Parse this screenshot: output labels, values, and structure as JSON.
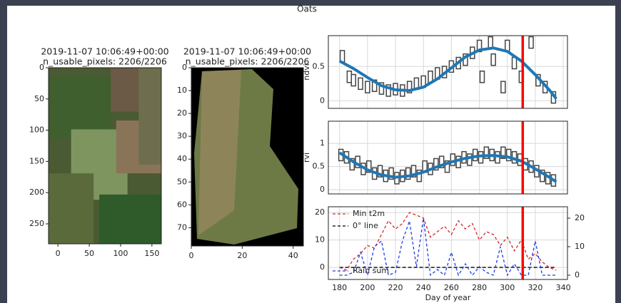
{
  "figure_title": "Oats",
  "chart_data": [
    {
      "type": "image",
      "title": "2019-11-07 10:06:49+00:00",
      "subtitle": "n_usable_pixels: 2206/2206",
      "xlim": [
        -15,
        165
      ],
      "ylim": [
        0,
        282
      ],
      "xticks": [
        0,
        50,
        100,
        150
      ],
      "yticks": [
        0,
        50,
        100,
        150,
        200,
        250
      ]
    },
    {
      "type": "image",
      "title": "2019-11-07 10:06:49+00:00",
      "subtitle": "n_usable_pixels: 2206/2206",
      "xlim": [
        0,
        44
      ],
      "ylim": [
        0,
        78
      ],
      "xticks": [
        0,
        20,
        40
      ],
      "yticks": [
        0,
        10,
        20,
        30,
        40,
        50,
        60,
        70
      ]
    },
    {
      "type": "line",
      "ylabel": "ndvi",
      "xlim": [
        172,
        343
      ],
      "ylim": [
        -0.11,
        0.95
      ],
      "xticks": [
        180,
        200,
        220,
        240,
        260,
        280,
        300,
        320,
        340
      ],
      "yticks": [
        0.0,
        0.5
      ],
      "grid": true,
      "vline": 311,
      "vline_color": "#ff0000",
      "series": [
        {
          "style": "box",
          "color": "#444444",
          "x": [
            182,
            187,
            190,
            195,
            200,
            205,
            210,
            215,
            220,
            225,
            230,
            235,
            240,
            245,
            250,
            255,
            260,
            265,
            270,
            275,
            280,
            282,
            288,
            290,
            297,
            300,
            305,
            310,
            317,
            322,
            327,
            333
          ],
          "values": [
            0.65,
            0.35,
            0.3,
            0.25,
            0.2,
            0.22,
            0.18,
            0.15,
            0.17,
            0.15,
            0.2,
            0.25,
            0.28,
            0.35,
            0.4,
            0.42,
            0.5,
            0.55,
            0.6,
            0.7,
            0.8,
            0.35,
            0.85,
            0.6,
            0.2,
            0.8,
            0.55,
            0.35,
            0.85,
            0.3,
            0.2,
            0.05
          ]
        },
        {
          "style": "line",
          "color": "#1f77b4",
          "x": [
            180,
            190,
            200,
            210,
            220,
            230,
            240,
            250,
            260,
            270,
            280,
            290,
            300,
            310,
            320,
            330,
            335
          ],
          "values": [
            0.58,
            0.47,
            0.34,
            0.22,
            0.16,
            0.15,
            0.2,
            0.32,
            0.48,
            0.64,
            0.74,
            0.77,
            0.72,
            0.58,
            0.38,
            0.16,
            0.03
          ]
        }
      ]
    },
    {
      "type": "line",
      "ylabel": "rvi",
      "xlim": [
        172,
        343
      ],
      "ylim": [
        -0.09,
        1.48
      ],
      "xticks": [
        180,
        200,
        220,
        240,
        260,
        280,
        300,
        320,
        340
      ],
      "yticks": [
        0.0,
        0.5,
        1.0
      ],
      "grid": true,
      "vline": 311,
      "vline_color": "#ff0000",
      "series": [
        {
          "style": "box",
          "color": "#444444",
          "x": [
            181,
            185,
            189,
            193,
            197,
            201,
            205,
            209,
            213,
            217,
            221,
            225,
            229,
            233,
            237,
            241,
            245,
            249,
            253,
            257,
            261,
            265,
            269,
            273,
            277,
            281,
            285,
            289,
            293,
            297,
            301,
            305,
            309,
            313,
            317,
            321,
            325,
            329,
            333
          ],
          "values": [
            0.75,
            0.7,
            0.55,
            0.6,
            0.45,
            0.5,
            0.35,
            0.4,
            0.3,
            0.35,
            0.25,
            0.3,
            0.35,
            0.4,
            0.3,
            0.5,
            0.45,
            0.55,
            0.6,
            0.5,
            0.65,
            0.6,
            0.7,
            0.65,
            0.75,
            0.7,
            0.8,
            0.75,
            0.7,
            0.8,
            0.75,
            0.7,
            0.65,
            0.55,
            0.5,
            0.4,
            0.3,
            0.25,
            0.2
          ]
        },
        {
          "style": "line",
          "color": "#1f77b4",
          "x": [
            180,
            190,
            200,
            210,
            220,
            230,
            240,
            250,
            260,
            270,
            280,
            290,
            300,
            310,
            320,
            330,
            335
          ],
          "values": [
            0.8,
            0.6,
            0.43,
            0.32,
            0.27,
            0.3,
            0.38,
            0.5,
            0.6,
            0.68,
            0.73,
            0.74,
            0.71,
            0.62,
            0.45,
            0.27,
            0.17
          ]
        }
      ]
    },
    {
      "type": "line",
      "xlabel": "Day of year",
      "xlim": [
        172,
        343
      ],
      "ylim": [
        -4.4,
        22.1
      ],
      "y2lim": [
        -1.5,
        24
      ],
      "xticks": [
        180,
        200,
        220,
        240,
        260,
        280,
        300,
        320,
        340
      ],
      "yticks": [
        0,
        10,
        20
      ],
      "y2ticks": [
        0,
        10,
        20
      ],
      "grid": true,
      "legend": "upper left",
      "vline": 311,
      "vline_color": "#ff0000",
      "hline": {
        "name": "0° line",
        "value": 0,
        "color": "#000000"
      },
      "series": [
        {
          "name": "Min t2m",
          "style": "dashed",
          "color": "#d62728",
          "x": [
            180,
            185,
            190,
            195,
            200,
            205,
            210,
            215,
            220,
            225,
            230,
            235,
            240,
            245,
            250,
            255,
            260,
            265,
            270,
            275,
            280,
            285,
            290,
            295,
            300,
            305,
            310,
            315,
            320,
            325,
            330,
            335
          ],
          "values": [
            0,
            -1,
            3,
            5,
            8,
            7,
            12,
            17,
            14,
            16,
            20,
            19,
            18,
            11,
            13,
            15,
            12,
            17,
            14,
            16,
            10,
            13,
            12,
            8,
            11,
            6,
            10,
            3,
            5,
            2,
            0,
            -1
          ]
        },
        {
          "name": "Rain sum",
          "style": "dashed",
          "axis": "y2",
          "color": "#1f3fe0",
          "x": [
            180,
            185,
            190,
            195,
            200,
            205,
            210,
            215,
            220,
            225,
            230,
            235,
            240,
            245,
            250,
            255,
            260,
            265,
            270,
            275,
            280,
            285,
            290,
            295,
            300,
            305,
            310,
            315,
            320,
            325,
            330,
            335
          ],
          "values": [
            0,
            0,
            1,
            8,
            0,
            10,
            12,
            0,
            1,
            12,
            19,
            3,
            20,
            0,
            2,
            0,
            8,
            0,
            4,
            0,
            3,
            1,
            0,
            10,
            0,
            4,
            0,
            0,
            12,
            0,
            0,
            0
          ]
        }
      ]
    }
  ]
}
